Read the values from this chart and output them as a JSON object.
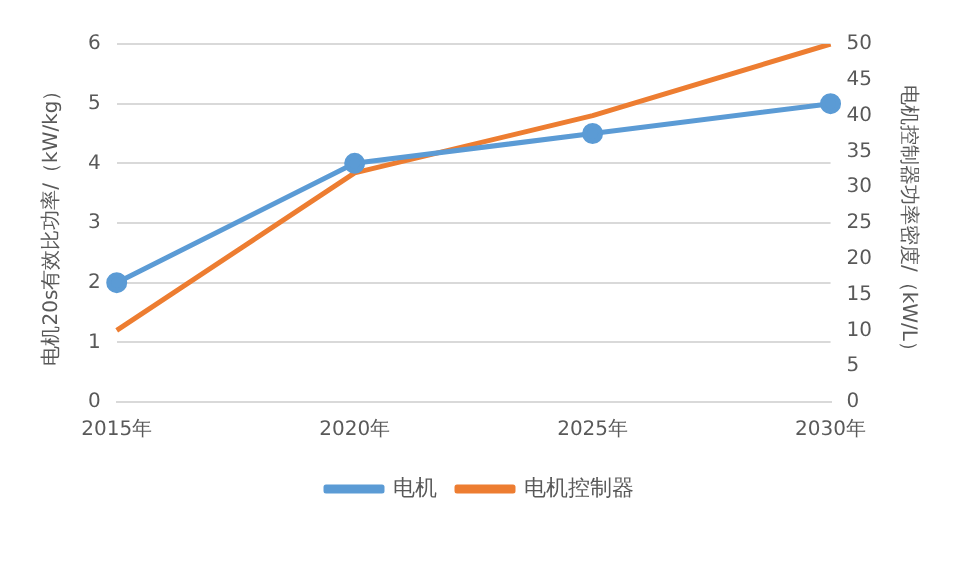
{
  "chart_data": {
    "type": "line",
    "categories": [
      "2015年",
      "2020年",
      "2025年",
      "2030年"
    ],
    "ylabel": "电机20s有效比功率/（kW/kg）",
    "y2label": "电机控制器功率密度/（kW/L）",
    "series": [
      {
        "name": "电机",
        "color": "#5b9bd5",
        "values": [
          2,
          4,
          4.5,
          5
        ],
        "marker": "circle"
      },
      {
        "name": "电机控制器",
        "color": "#ed7d31",
        "values": [
          10,
          32,
          40,
          50
        ],
        "axis": "y2",
        "marker": "none"
      }
    ],
    "ylim": [
      0,
      6
    ],
    "yticks": [
      0,
      1,
      2,
      3,
      4,
      5,
      6
    ],
    "y2lim": [
      0,
      50
    ],
    "y2ticks": [
      0,
      5,
      10,
      15,
      20,
      25,
      30,
      35,
      40,
      45,
      50
    ],
    "grid": "y",
    "legend": "bottom"
  }
}
